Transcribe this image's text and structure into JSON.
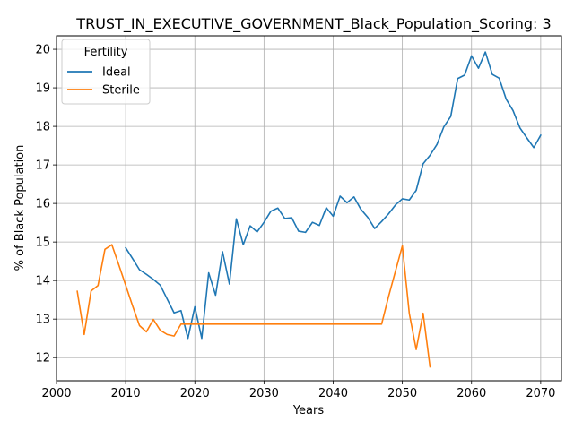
{
  "chart_data": {
    "type": "line",
    "title": "TRUST_IN_EXECUTIVE_GOVERNMENT_Black_Population_Scoring: 3",
    "xlabel": "Years",
    "ylabel": "% of Black Population",
    "xlim": [
      2000,
      2073
    ],
    "ylim": [
      11.4,
      20.35
    ],
    "xticks": [
      2000,
      2010,
      2020,
      2030,
      2040,
      2050,
      2060,
      2070
    ],
    "yticks": [
      12,
      13,
      14,
      15,
      16,
      17,
      18,
      19,
      20
    ],
    "grid": true,
    "legend": {
      "title": "Fertility",
      "placement": "top-left"
    },
    "series": [
      {
        "name": "Ideal",
        "color": "#1f77b4",
        "x": [
          2010,
          2011,
          2012,
          2013,
          2014,
          2015,
          2016,
          2017,
          2018,
          2019,
          2020,
          2021,
          2022,
          2023,
          2024,
          2025,
          2026,
          2027,
          2028,
          2029,
          2030,
          2031,
          2032,
          2033,
          2034,
          2035,
          2036,
          2037,
          2038,
          2039,
          2040,
          2041,
          2042,
          2043,
          2044,
          2045,
          2046,
          2047,
          2048,
          2049,
          2050,
          2051,
          2052,
          2053,
          2054,
          2055,
          2056,
          2057,
          2058,
          2059,
          2060,
          2061,
          2062,
          2063,
          2064,
          2065,
          2066,
          2067,
          2068,
          2069,
          2070
        ],
        "y": [
          14.85,
          14.57,
          14.28,
          14.16,
          14.03,
          13.88,
          13.52,
          13.16,
          13.22,
          12.5,
          13.32,
          12.5,
          14.2,
          13.62,
          14.75,
          13.91,
          15.6,
          14.93,
          15.42,
          15.26,
          15.51,
          15.8,
          15.88,
          15.61,
          15.63,
          15.28,
          15.25,
          15.51,
          15.43,
          15.89,
          15.67,
          16.19,
          16.02,
          16.17,
          15.85,
          15.64,
          15.35,
          15.53,
          15.73,
          15.96,
          16.12,
          16.09,
          16.34,
          17.03,
          17.25,
          17.53,
          17.99,
          18.26,
          19.24,
          19.33,
          19.83,
          19.51,
          19.93,
          19.35,
          19.25,
          18.71,
          18.41,
          17.96,
          17.7,
          17.45,
          17.77
        ]
      },
      {
        "name": "Sterile",
        "color": "#ff7f0e",
        "x": [
          2003,
          2004,
          2005,
          2006,
          2007,
          2008,
          2009,
          2010,
          2011,
          2012,
          2013,
          2014,
          2015,
          2016,
          2017,
          2018,
          2019,
          2020,
          2021,
          2022,
          2023,
          2024,
          2025,
          2026,
          2027,
          2028,
          2029,
          2030,
          2031,
          2032,
          2033,
          2034,
          2035,
          2036,
          2037,
          2038,
          2039,
          2040,
          2041,
          2042,
          2043,
          2044,
          2045,
          2046,
          2047,
          2048,
          2049,
          2050,
          2051,
          2052,
          2053,
          2054
        ],
        "y": [
          13.72,
          12.6,
          13.73,
          13.87,
          14.81,
          14.93,
          14.41,
          13.88,
          13.34,
          12.83,
          12.67,
          12.99,
          12.71,
          12.6,
          12.56,
          12.87,
          12.87,
          12.87,
          12.87,
          12.87,
          12.87,
          12.87,
          12.87,
          12.87,
          12.87,
          12.87,
          12.87,
          12.87,
          12.87,
          12.87,
          12.87,
          12.87,
          12.87,
          12.87,
          12.87,
          12.87,
          12.87,
          12.87,
          12.87,
          12.87,
          12.87,
          12.87,
          12.87,
          12.87,
          12.87,
          13.58,
          14.24,
          14.9,
          13.15,
          12.21,
          13.15,
          11.76
        ]
      }
    ]
  }
}
